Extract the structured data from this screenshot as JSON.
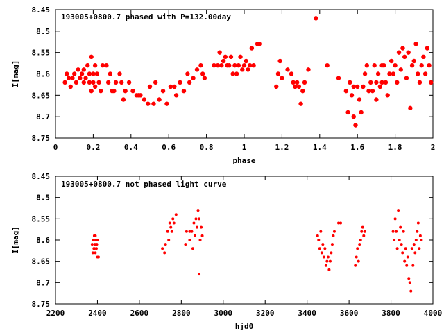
{
  "chart_data": [
    {
      "type": "scatter",
      "title": "193005+0800.7 phased with P=132.00day",
      "xlabel": "phase",
      "ylabel": "I[mag]",
      "xlim": [
        0,
        2
      ],
      "ylim": [
        8.75,
        8.45
      ],
      "y_inverted": true,
      "xticks": [
        0,
        0.2,
        0.4,
        0.6,
        0.8,
        1,
        1.2,
        1.4,
        1.6,
        1.8,
        2
      ],
      "xtick_labels": [
        "0",
        "0.2",
        "0.4",
        "0.6",
        "0.8",
        "1",
        "1.2",
        "1.4",
        "1.6",
        "1.8",
        "2"
      ],
      "yticks": [
        8.45,
        8.5,
        8.55,
        8.6,
        8.65,
        8.7,
        8.75
      ],
      "ytick_labels": [
        "8.45",
        "8.5",
        "8.55",
        "8.6",
        "8.65",
        "8.7",
        "8.75"
      ],
      "grid": false,
      "marker_color": "#ff0000",
      "marker": "filled-circle-large",
      "series": [
        {
          "points": [
            [
              0.05,
              8.62
            ],
            [
              0.06,
              8.6
            ],
            [
              0.07,
              8.61
            ],
            [
              0.08,
              8.63
            ],
            [
              0.09,
              8.61
            ],
            [
              0.1,
              8.6
            ],
            [
              0.11,
              8.62
            ],
            [
              0.12,
              8.59
            ],
            [
              0.13,
              8.61
            ],
            [
              0.14,
              8.6
            ],
            [
              0.15,
              8.62
            ],
            [
              0.15,
              8.59
            ],
            [
              0.16,
              8.61
            ],
            [
              0.17,
              8.58
            ],
            [
              0.18,
              8.62
            ],
            [
              0.18,
              8.6
            ],
            [
              0.19,
              8.56
            ],
            [
              0.19,
              8.64
            ],
            [
              0.2,
              8.6
            ],
            [
              0.2,
              8.62
            ],
            [
              0.21,
              8.58
            ],
            [
              0.21,
              8.63
            ],
            [
              0.22,
              8.6
            ],
            [
              0.23,
              8.62
            ],
            [
              0.24,
              8.64
            ],
            [
              0.25,
              8.58
            ],
            [
              0.27,
              8.58
            ],
            [
              0.28,
              8.62
            ],
            [
              0.29,
              8.6
            ],
            [
              0.3,
              8.64
            ],
            [
              0.31,
              8.64
            ],
            [
              0.32,
              8.62
            ],
            [
              0.34,
              8.6
            ],
            [
              0.35,
              8.62
            ],
            [
              0.36,
              8.66
            ],
            [
              0.37,
              8.64
            ],
            [
              0.39,
              8.62
            ],
            [
              0.41,
              8.64
            ],
            [
              0.43,
              8.65
            ],
            [
              0.44,
              8.65
            ],
            [
              0.45,
              8.65
            ],
            [
              0.47,
              8.66
            ],
            [
              0.49,
              8.67
            ],
            [
              0.5,
              8.63
            ],
            [
              0.52,
              8.67
            ],
            [
              0.53,
              8.62
            ],
            [
              0.55,
              8.66
            ],
            [
              0.57,
              8.64
            ],
            [
              0.59,
              8.67
            ],
            [
              0.61,
              8.63
            ],
            [
              0.63,
              8.63
            ],
            [
              0.64,
              8.65
            ],
            [
              0.66,
              8.62
            ],
            [
              0.68,
              8.64
            ],
            [
              0.7,
              8.6
            ],
            [
              0.71,
              8.62
            ],
            [
              0.73,
              8.61
            ],
            [
              0.75,
              8.59
            ],
            [
              0.77,
              8.58
            ],
            [
              0.78,
              8.6
            ],
            [
              0.79,
              8.61
            ],
            [
              0.84,
              8.58
            ],
            [
              0.86,
              8.58
            ],
            [
              0.87,
              8.55
            ],
            [
              0.88,
              8.58
            ],
            [
              0.89,
              8.57
            ],
            [
              0.9,
              8.56
            ],
            [
              0.91,
              8.58
            ],
            [
              0.92,
              8.58
            ],
            [
              0.93,
              8.56
            ],
            [
              0.94,
              8.6
            ],
            [
              0.95,
              8.58
            ],
            [
              0.96,
              8.6
            ],
            [
              0.97,
              8.58
            ],
            [
              0.98,
              8.56
            ],
            [
              0.99,
              8.59
            ],
            [
              1.0,
              8.58
            ],
            [
              1.01,
              8.57
            ],
            [
              1.02,
              8.59
            ],
            [
              1.03,
              8.58
            ],
            [
              1.04,
              8.54
            ],
            [
              1.05,
              8.58
            ],
            [
              1.07,
              8.53
            ],
            [
              1.08,
              8.53
            ],
            [
              1.17,
              8.63
            ],
            [
              1.18,
              8.6
            ],
            [
              1.19,
              8.57
            ],
            [
              1.2,
              8.61
            ],
            [
              1.23,
              8.59
            ],
            [
              1.25,
              8.6
            ],
            [
              1.26,
              8.62
            ],
            [
              1.27,
              8.63
            ],
            [
              1.28,
              8.62
            ],
            [
              1.29,
              8.63
            ],
            [
              1.3,
              8.67
            ],
            [
              1.31,
              8.64
            ],
            [
              1.32,
              8.62
            ],
            [
              1.34,
              8.59
            ],
            [
              1.38,
              8.47
            ],
            [
              1.44,
              8.58
            ],
            [
              1.5,
              8.61
            ],
            [
              1.54,
              8.64
            ],
            [
              1.55,
              8.69
            ],
            [
              1.56,
              8.62
            ],
            [
              1.57,
              8.65
            ],
            [
              1.58,
              8.63
            ],
            [
              1.58,
              8.7
            ],
            [
              1.59,
              8.72
            ],
            [
              1.6,
              8.63
            ],
            [
              1.61,
              8.66
            ],
            [
              1.62,
              8.69
            ],
            [
              1.63,
              8.63
            ],
            [
              1.64,
              8.6
            ],
            [
              1.65,
              8.58
            ],
            [
              1.66,
              8.64
            ],
            [
              1.67,
              8.62
            ],
            [
              1.68,
              8.64
            ],
            [
              1.69,
              8.58
            ],
            [
              1.7,
              8.62
            ],
            [
              1.7,
              8.66
            ],
            [
              1.71,
              8.6
            ],
            [
              1.72,
              8.63
            ],
            [
              1.73,
              8.58
            ],
            [
              1.73,
              8.62
            ],
            [
              1.74,
              8.58
            ],
            [
              1.75,
              8.62
            ],
            [
              1.76,
              8.65
            ],
            [
              1.77,
              8.6
            ],
            [
              1.78,
              8.57
            ],
            [
              1.79,
              8.6
            ],
            [
              1.8,
              8.58
            ],
            [
              1.81,
              8.62
            ],
            [
              1.82,
              8.55
            ],
            [
              1.83,
              8.59
            ],
            [
              1.84,
              8.54
            ],
            [
              1.85,
              8.56
            ],
            [
              1.86,
              8.61
            ],
            [
              1.87,
              8.55
            ],
            [
              1.88,
              8.68
            ],
            [
              1.89,
              8.58
            ],
            [
              1.9,
              8.57
            ],
            [
              1.91,
              8.53
            ],
            [
              1.92,
              8.6
            ],
            [
              1.93,
              8.62
            ],
            [
              1.94,
              8.58
            ],
            [
              1.95,
              8.56
            ],
            [
              1.96,
              8.6
            ],
            [
              1.97,
              8.54
            ],
            [
              1.98,
              8.58
            ],
            [
              1.99,
              8.62
            ]
          ]
        }
      ]
    },
    {
      "type": "scatter",
      "title": "193005+0800.7 not phased light curve",
      "xlabel": "hjd0",
      "ylabel": "I[mag]",
      "xlim": [
        2200,
        4000
      ],
      "ylim": [
        8.75,
        8.45
      ],
      "y_inverted": true,
      "xticks": [
        2200,
        2400,
        2600,
        2800,
        3000,
        3200,
        3400,
        3600,
        3800,
        4000
      ],
      "xtick_labels": [
        "2200",
        "2400",
        "2600",
        "2800",
        "3000",
        "3200",
        "3400",
        "3600",
        "3800",
        "4000"
      ],
      "yticks": [
        8.45,
        8.5,
        8.55,
        8.6,
        8.65,
        8.7,
        8.75
      ],
      "ytick_labels": [
        "8.45",
        "8.5",
        "8.55",
        "8.6",
        "8.65",
        "8.7",
        "8.75"
      ],
      "grid": false,
      "marker_color": "#ff0000",
      "marker": "filled-circle-small",
      "series": [
        {
          "points": [
            [
              2375,
              8.61
            ],
            [
              2378,
              8.63
            ],
            [
              2380,
              8.6
            ],
            [
              2383,
              8.62
            ],
            [
              2385,
              8.59
            ],
            [
              2388,
              8.61
            ],
            [
              2390,
              8.63
            ],
            [
              2392,
              8.6
            ],
            [
              2395,
              8.62
            ],
            [
              2397,
              8.61
            ],
            [
              2400,
              8.64
            ],
            [
              2402,
              8.6
            ],
            [
              2405,
              8.64
            ],
            [
              2390,
              8.59
            ],
            [
              2385,
              8.62
            ],
            [
              2710,
              8.62
            ],
            [
              2720,
              8.63
            ],
            [
              2725,
              8.61
            ],
            [
              2735,
              8.58
            ],
            [
              2740,
              8.6
            ],
            [
              2745,
              8.56
            ],
            [
              2750,
              8.57
            ],
            [
              2755,
              8.58
            ],
            [
              2760,
              8.55
            ],
            [
              2765,
              8.56
            ],
            [
              2775,
              8.54
            ],
            [
              2820,
              8.61
            ],
            [
              2825,
              8.58
            ],
            [
              2840,
              8.6
            ],
            [
              2850,
              8.58
            ],
            [
              2855,
              8.62
            ],
            [
              2860,
              8.56
            ],
            [
              2865,
              8.59
            ],
            [
              2870,
              8.55
            ],
            [
              2875,
              8.57
            ],
            [
              2880,
              8.53
            ],
            [
              2885,
              8.55
            ],
            [
              2890,
              8.6
            ],
            [
              2895,
              8.57
            ],
            [
              2885,
              8.68
            ],
            [
              2900,
              8.59
            ],
            [
              2840,
              8.58
            ],
            [
              3450,
              8.59
            ],
            [
              3455,
              8.6
            ],
            [
              3460,
              8.62
            ],
            [
              3465,
              8.58
            ],
            [
              3470,
              8.63
            ],
            [
              3475,
              8.61
            ],
            [
              3480,
              8.64
            ],
            [
              3485,
              8.62
            ],
            [
              3490,
              8.66
            ],
            [
              3495,
              8.65
            ],
            [
              3500,
              8.64
            ],
            [
              3505,
              8.67
            ],
            [
              3510,
              8.65
            ],
            [
              3515,
              8.63
            ],
            [
              3520,
              8.61
            ],
            [
              3525,
              8.59
            ],
            [
              3530,
              8.58
            ],
            [
              3550,
              8.56
            ],
            [
              3560,
              8.56
            ],
            [
              3630,
              8.66
            ],
            [
              3635,
              8.64
            ],
            [
              3640,
              8.62
            ],
            [
              3645,
              8.65
            ],
            [
              3650,
              8.61
            ],
            [
              3655,
              8.6
            ],
            [
              3660,
              8.58
            ],
            [
              3665,
              8.57
            ],
            [
              3670,
              8.59
            ],
            [
              3675,
              8.58
            ],
            [
              3810,
              8.58
            ],
            [
              3815,
              8.6
            ],
            [
              3820,
              8.55
            ],
            [
              3825,
              8.58
            ],
            [
              3830,
              8.62
            ],
            [
              3835,
              8.53
            ],
            [
              3840,
              8.6
            ],
            [
              3845,
              8.57
            ],
            [
              3850,
              8.61
            ],
            [
              3855,
              8.63
            ],
            [
              3860,
              8.58
            ],
            [
              3865,
              8.65
            ],
            [
              3870,
              8.62
            ],
            [
              3875,
              8.66
            ],
            [
              3880,
              8.64
            ],
            [
              3885,
              8.69
            ],
            [
              3890,
              8.7
            ],
            [
              3895,
              8.72
            ],
            [
              3900,
              8.62
            ],
            [
              3905,
              8.66
            ],
            [
              3910,
              8.61
            ],
            [
              3915,
              8.63
            ],
            [
              3920,
              8.6
            ],
            [
              3925,
              8.58
            ],
            [
              3930,
              8.56
            ],
            [
              3935,
              8.62
            ],
            [
              3940,
              8.59
            ],
            [
              3945,
              8.6
            ]
          ]
        }
      ]
    }
  ]
}
